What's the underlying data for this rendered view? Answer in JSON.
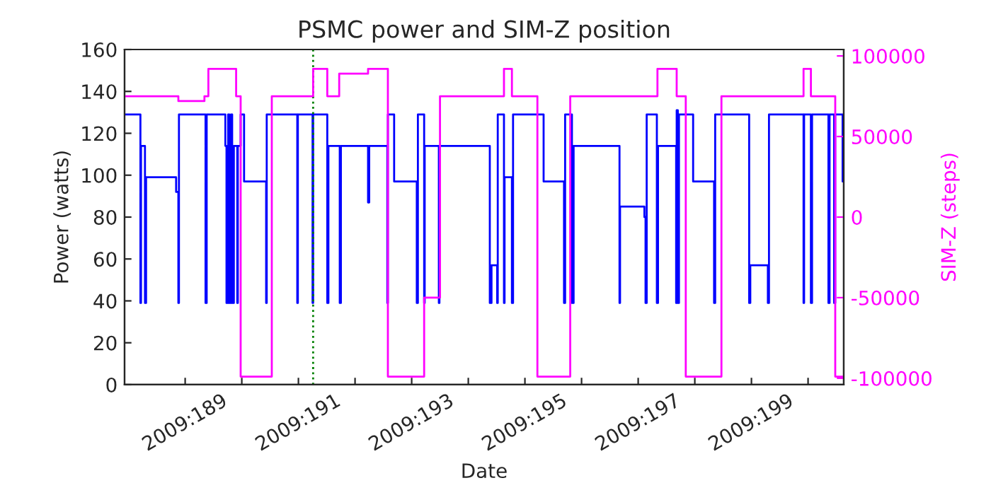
{
  "chart_data": {
    "type": "step",
    "title": "PSMC power and SIM-Z position",
    "xlabel": "Date",
    "ylabel": "Power (watts)",
    "y2label": "SIM-Z (steps)",
    "xlim": [
      "2009-07-06T22:19",
      "2009-07-19T15:07"
    ],
    "xticks": [
      {
        "value": "2009-07-08",
        "label": "2009:189"
      },
      {
        "value": "2009-07-09",
        "label": null
      },
      {
        "value": "2009-07-10",
        "label": "2009:191"
      },
      {
        "value": "2009-07-11",
        "label": null
      },
      {
        "value": "2009-07-12",
        "label": "2009:193"
      },
      {
        "value": "2009-07-13",
        "label": null
      },
      {
        "value": "2009-07-14",
        "label": "2009:195"
      },
      {
        "value": "2009-07-15",
        "label": null
      },
      {
        "value": "2009-07-16",
        "label": "2009:197"
      },
      {
        "value": "2009-07-17",
        "label": null
      },
      {
        "value": "2009-07-18",
        "label": "2009:199"
      },
      {
        "value": "2009-07-19",
        "label": null
      }
    ],
    "ylim": [
      0,
      160
    ],
    "yticks": [
      0,
      20,
      40,
      60,
      80,
      100,
      120,
      140,
      160
    ],
    "y2lim": [
      -104000,
      104000
    ],
    "y2ticks": [
      -100000,
      -50000,
      0,
      50000,
      100000
    ],
    "grid": false,
    "marker": "none",
    "line_style": "solid",
    "ref_lines": [
      {
        "axis": "x",
        "value": "2009-07-10T06:14",
        "color": "#008000",
        "line_style": "dotted"
      }
    ],
    "series": [
      {
        "color": "#0000ff",
        "x": [
          "2009-07-06T22:19",
          "2009-07-07T05:02",
          "2009-07-07T05:17",
          "2009-07-07T06:58",
          "2009-07-07T07:26",
          "2009-07-07T20:10",
          "2009-07-07T21:07",
          "2009-07-07T21:22",
          "2009-07-08T08:38",
          "2009-07-08T09:07",
          "2009-07-08T17:02",
          "2009-07-08T17:31",
          "2009-07-08T18:14",
          "2009-07-08T18:43",
          "2009-07-08T19:26",
          "2009-07-08T19:55",
          "2009-07-08T20:38",
          "2009-07-08T22:05",
          "2009-07-08T22:19",
          "2009-07-08T23:31",
          "2009-07-09T00:58",
          "2009-07-09T10:19",
          "2009-07-09T10:34",
          "2009-07-09T23:31",
          "2009-07-09T23:46",
          "2009-07-10T06:00",
          "2009-07-10T06:14",
          "2009-07-10T12:14",
          "2009-07-10T12:43",
          "2009-07-10T17:31",
          "2009-07-10T18:00",
          "2009-07-11T05:31",
          "2009-07-11T06:00",
          "2009-07-11T13:41",
          "2009-07-11T13:55",
          "2009-07-11T16:34",
          "2009-07-12T02:10",
          "2009-07-12T02:38",
          "2009-07-12T05:17",
          "2009-07-12T05:31",
          "2009-07-12T11:31",
          "2009-07-12T11:46",
          "2009-07-13T09:07",
          "2009-07-13T09:50",
          "2009-07-13T12:14",
          "2009-07-13T12:29",
          "2009-07-13T15:07",
          "2009-07-13T15:22",
          "2009-07-13T18:29",
          "2009-07-13T18:58",
          "2009-07-14T07:55",
          "2009-07-14T16:34",
          "2009-07-14T17:02",
          "2009-07-14T19:55",
          "2009-07-14T20:38",
          "2009-07-15T16:05",
          "2009-07-15T16:19",
          "2009-07-16T02:38",
          "2009-07-16T03:07",
          "2009-07-16T03:36",
          "2009-07-16T07:55",
          "2009-07-16T08:24",
          "2009-07-16T16:05",
          "2009-07-16T16:19",
          "2009-07-16T16:48",
          "2009-07-16T17:17",
          "2009-07-16T23:17",
          "2009-07-17T08:10",
          "2009-07-17T08:38",
          "2009-07-17T23:02",
          "2009-07-17T23:31",
          "2009-07-18T06:58",
          "2009-07-18T07:26",
          "2009-07-18T22:05",
          "2009-07-18T22:19",
          "2009-07-19T01:12",
          "2009-07-19T01:41",
          "2009-07-19T08:38",
          "2009-07-19T09:07",
          "2009-07-19T11:02",
          "2009-07-19T11:31",
          "2009-07-19T14:38",
          "2009-07-19T15:07"
        ],
        "values": [
          129,
          39,
          114,
          39,
          99,
          92,
          39,
          129,
          39,
          129,
          114,
          39,
          129,
          39,
          129,
          39,
          114,
          39,
          114,
          129,
          97,
          39,
          129,
          39,
          129,
          39,
          129,
          39,
          114,
          39,
          114,
          87,
          114,
          39,
          129,
          97,
          39,
          129,
          39,
          114,
          39,
          114,
          39,
          57,
          39,
          129,
          39,
          99,
          39,
          129,
          97,
          39,
          129,
          39,
          114,
          39,
          85,
          80,
          39,
          129,
          39,
          114,
          39,
          131,
          39,
          129,
          97,
          39,
          129,
          39,
          57,
          39,
          129,
          39,
          129,
          39,
          129,
          39,
          129,
          39,
          129,
          97,
          97
        ]
      },
      {
        "color": "#ff00ff",
        "axis": "y2",
        "x": [
          "2009-07-06T22:19",
          "2009-07-07T21:07",
          "2009-07-08T08:10",
          "2009-07-08T09:50",
          "2009-07-08T21:36",
          "2009-07-08T23:31",
          "2009-07-09T12:43",
          "2009-07-10T06:14",
          "2009-07-10T12:14",
          "2009-07-10T17:17",
          "2009-07-11T05:31",
          "2009-07-11T13:55",
          "2009-07-12T05:17",
          "2009-07-12T12:00",
          "2009-07-13T15:07",
          "2009-07-13T18:29",
          "2009-07-14T05:17",
          "2009-07-14T19:12",
          "2009-07-16T08:10",
          "2009-07-16T16:19",
          "2009-07-16T20:10",
          "2009-07-17T11:17",
          "2009-07-18T22:05",
          "2009-07-19T01:12",
          "2009-07-19T11:31",
          "2009-07-19T15:07"
        ],
        "values": [
          75000,
          72000,
          75000,
          92000,
          75000,
          -99000,
          75000,
          92000,
          75000,
          89000,
          92000,
          -99000,
          -50000,
          75000,
          92000,
          75000,
          -99000,
          75000,
          92000,
          75000,
          -99000,
          75000,
          92000,
          75000,
          -99000,
          -99000
        ]
      }
    ]
  }
}
